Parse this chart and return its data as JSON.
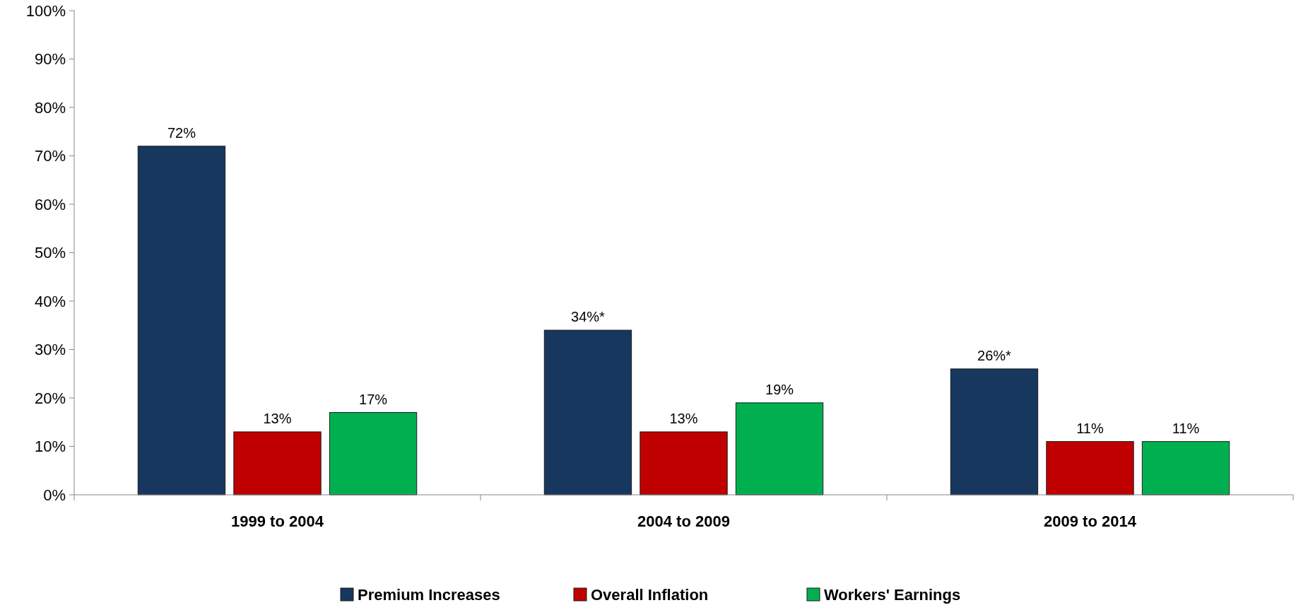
{
  "chart_data": {
    "type": "bar",
    "categories": [
      "1999 to 2004",
      "2004 to 2009",
      "2009 to 2014"
    ],
    "series": [
      {
        "name": "Premium Increases",
        "color": "#17375e",
        "values": [
          72,
          34,
          26
        ],
        "value_labels": [
          "72%",
          "34%*",
          "26%*"
        ]
      },
      {
        "name": "Overall Inflation",
        "color": "#c00000",
        "values": [
          13,
          13,
          11
        ],
        "value_labels": [
          "13%",
          "13%",
          "11%"
        ]
      },
      {
        "name": "Workers' Earnings",
        "color": "#00b050",
        "values": [
          17,
          19,
          11
        ],
        "value_labels": [
          "17%",
          "19%",
          "11%"
        ]
      }
    ],
    "ylim": [
      0,
      100
    ],
    "yticks": [
      {
        "value": 0,
        "label": "0%"
      },
      {
        "value": 10,
        "label": "10%"
      },
      {
        "value": 20,
        "label": "20%"
      },
      {
        "value": 30,
        "label": "30%"
      },
      {
        "value": 40,
        "label": "40%"
      },
      {
        "value": 50,
        "label": "50%"
      },
      {
        "value": 60,
        "label": "60%"
      },
      {
        "value": 70,
        "label": "70%"
      },
      {
        "value": 80,
        "label": "80%"
      },
      {
        "value": 90,
        "label": "90%"
      },
      {
        "value": 100,
        "label": "100%"
      }
    ],
    "grid": false,
    "legend": "bottom"
  }
}
